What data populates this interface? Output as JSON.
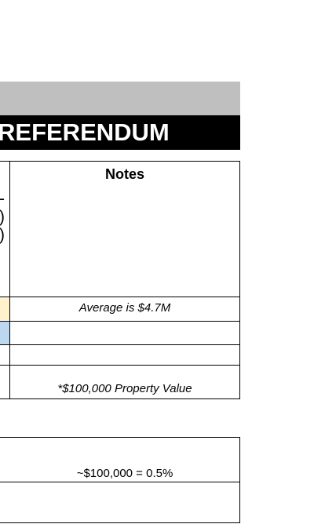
{
  "title_bar": {
    "text": "REFERENDUM"
  },
  "table1": {
    "header": {
      "notes": "Notes"
    },
    "left_fragments": [
      "-",
      ")",
      ")"
    ],
    "rows": [
      {
        "note": "Average is $4.7M",
        "fill": "#fff2cc"
      },
      {
        "note": "",
        "fill": "#bdd7ee"
      },
      {
        "note": ""
      },
      {
        "note": "*$100,000 Property Value"
      }
    ]
  },
  "table2": {
    "rows": [
      {
        "note": "~$100,000 = 0.5%"
      },
      {
        "note": ""
      }
    ]
  }
}
